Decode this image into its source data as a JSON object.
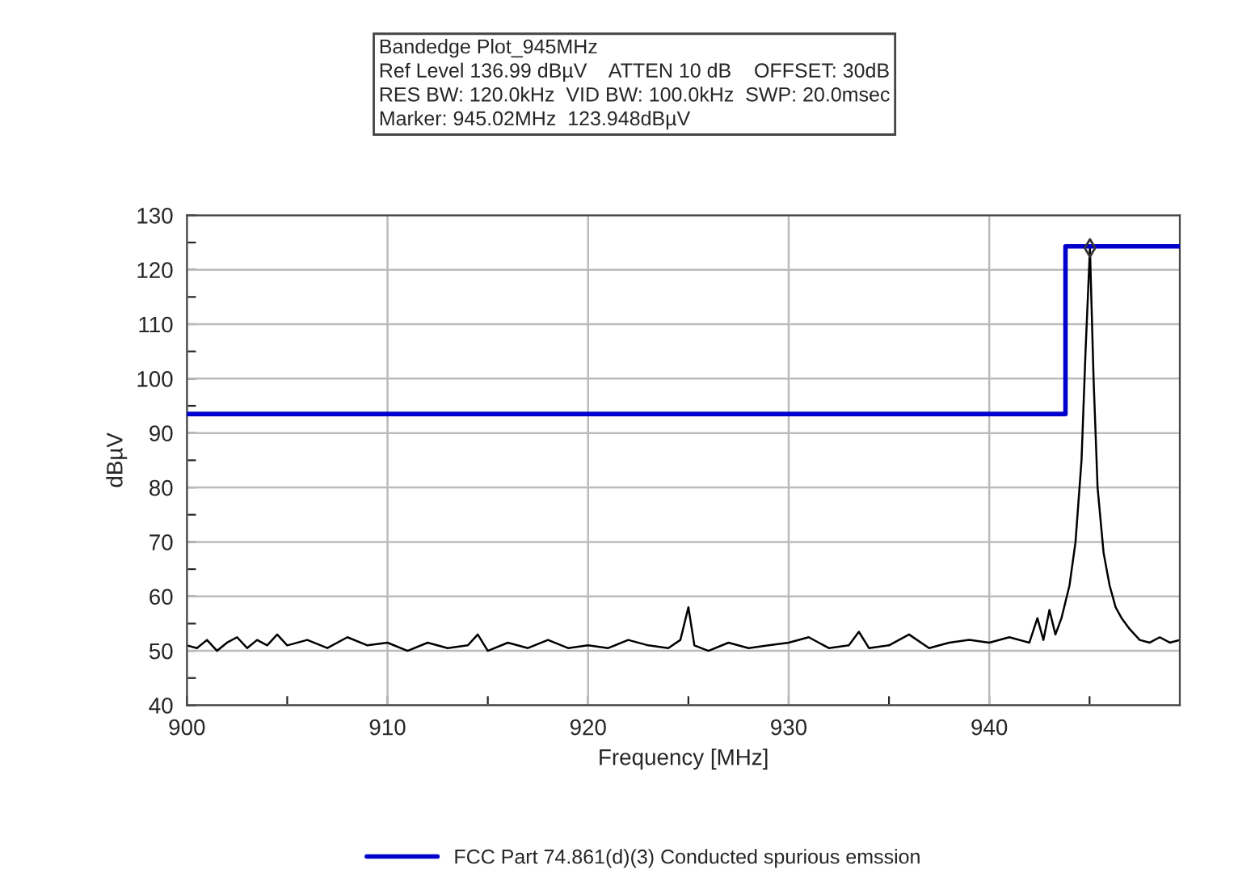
{
  "chart_data": {
    "type": "line",
    "title": "Bandedge Plot_945MHz",
    "annotations": [
      "Ref Level 136.99 dBµV    ATTEN 10 dB    OFFSET: 30dB",
      "RES BW: 120.0kHz  VID BW: 100.0kHz  SWP: 20.0msec",
      "Marker: 945.02MHz  123.948dBµV"
    ],
    "xlabel": "Frequency [MHz]",
    "ylabel": "dBµV",
    "xlim": [
      900,
      949.5
    ],
    "ylim": [
      40,
      130
    ],
    "xticks": [
      900,
      {
        "value": 905,
        "label": null
      },
      910,
      {
        "value": 915,
        "label": null
      },
      920,
      {
        "value": 925,
        "label": null
      },
      930,
      {
        "value": 935,
        "label": null
      },
      940,
      {
        "value": 945,
        "label": null
      }
    ],
    "yticks": [
      40,
      {
        "value": 45,
        "label": null
      },
      50,
      {
        "value": 55,
        "label": null
      },
      60,
      {
        "value": 65,
        "label": null
      },
      70,
      {
        "value": 75,
        "label": null
      },
      80,
      {
        "value": 85,
        "label": null
      },
      90,
      {
        "value": 95,
        "label": null
      },
      100,
      {
        "value": 105,
        "label": null
      },
      110,
      {
        "value": 115,
        "label": null
      },
      120,
      {
        "value": 125,
        "label": null
      },
      130
    ],
    "grid": true,
    "legend": "bottom",
    "marker": "none",
    "line_style": "solid",
    "series": [
      {
        "color": "#000000",
        "x": [
          900,
          900.5,
          901,
          901.5,
          902,
          902.5,
          903,
          903.5,
          904,
          904.5,
          905,
          906,
          907,
          908,
          909,
          910,
          911,
          912,
          913,
          914,
          914.5,
          915,
          916,
          917,
          918,
          919,
          920,
          921,
          922,
          923,
          924,
          924.6,
          925,
          925.3,
          926,
          927,
          928,
          929,
          930,
          931,
          932,
          933,
          933.5,
          934,
          935,
          936,
          937,
          938,
          939,
          940,
          941,
          942,
          942.4,
          942.7,
          943,
          943.3,
          943.6,
          944,
          944.3,
          944.6,
          944.8,
          945.02,
          945.2,
          945.4,
          945.7,
          946,
          946.3,
          946.6,
          947,
          947.5,
          948,
          948.5,
          949,
          949.5
        ],
        "values": [
          51,
          50.5,
          52,
          50,
          51.5,
          52.5,
          50.5,
          52,
          51,
          53,
          51,
          52,
          50.5,
          52.5,
          51,
          51.5,
          50,
          51.5,
          50.5,
          51,
          53,
          50,
          51.5,
          50.5,
          52,
          50.5,
          51,
          50.5,
          52,
          51,
          50.5,
          52,
          58,
          51,
          50,
          51.5,
          50.5,
          51,
          51.5,
          52.5,
          50.5,
          51,
          53.5,
          50.5,
          51,
          53,
          50.5,
          51.5,
          52,
          51.5,
          52.5,
          51.5,
          56,
          52,
          57.5,
          53,
          56,
          62,
          70,
          85,
          105,
          124,
          100,
          80,
          68,
          62,
          58,
          56,
          54,
          52,
          51.5,
          52.5,
          51.5,
          52
        ]
      },
      {
        "type": "line",
        "name": "FCC Part 74.861(d)(3) Conducted spurious emssion",
        "color": "#0000cc",
        "x": [
          900,
          943.8,
          943.8,
          949.5
        ],
        "values": [
          93.5,
          93.5,
          124.3,
          124.3
        ]
      },
      {
        "type": "scatter",
        "color": "#333333",
        "marker": "diamond",
        "x": [
          945.02
        ],
        "values": [
          124
        ]
      }
    ]
  }
}
